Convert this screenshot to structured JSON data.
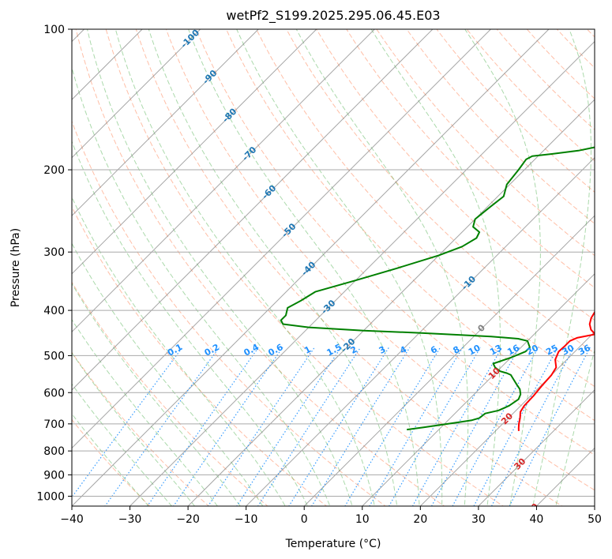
{
  "chart_data": {
    "type": "line",
    "title": "wetPf2_S199.2025.295.06.45.E03",
    "xlabel": "Temperature (°C)",
    "ylabel": "Pressure (hPa)",
    "xlim": [
      -40,
      50
    ],
    "ylim": [
      1050,
      100
    ],
    "x_ticks": [
      -40,
      -30,
      -20,
      -10,
      0,
      10,
      20,
      30,
      40,
      50
    ],
    "y_ticks": [
      100,
      200,
      300,
      400,
      500,
      600,
      700,
      800,
      900,
      1000
    ],
    "series": [
      {
        "name": "Temperature",
        "color": "#ff0000",
        "points": [
          [
            2.5,
            100
          ],
          [
            1.0,
            104
          ],
          [
            0.5,
            110
          ],
          [
            0.5,
            118
          ],
          [
            0.8,
            128
          ],
          [
            1.0,
            140
          ],
          [
            1.3,
            150
          ],
          [
            1.5,
            160
          ],
          [
            2.5,
            172
          ],
          [
            3.5,
            182
          ],
          [
            5.0,
            192
          ],
          [
            6.0,
            200
          ],
          [
            6.6,
            210
          ],
          [
            6.8,
            225
          ],
          [
            7.1,
            240
          ],
          [
            7.8,
            255
          ],
          [
            8.5,
            270
          ],
          [
            9.5,
            285
          ],
          [
            10.5,
            300
          ],
          [
            12.0,
            320
          ],
          [
            13.5,
            340
          ],
          [
            14.5,
            355
          ],
          [
            15.5,
            370
          ],
          [
            16.0,
            385
          ],
          [
            16.5,
            400
          ],
          [
            17.0,
            415
          ],
          [
            17.8,
            428
          ],
          [
            19.0,
            440
          ],
          [
            20.5,
            450
          ],
          [
            18.0,
            458
          ],
          [
            17.3,
            465
          ],
          [
            17.3,
            478
          ],
          [
            17.2,
            490
          ],
          [
            18.0,
            510
          ],
          [
            19.5,
            530
          ],
          [
            20.0,
            550
          ],
          [
            20.2,
            580
          ],
          [
            20.5,
            610
          ],
          [
            20.6,
            640
          ],
          [
            21.0,
            660
          ],
          [
            22.0,
            680
          ],
          [
            22.8,
            700
          ],
          [
            23.5,
            715
          ],
          [
            24.0,
            725
          ]
        ]
      },
      {
        "name": "Dewpoint",
        "color": "#008000",
        "points": [
          [
            0.5,
            100
          ],
          [
            0.5,
            104
          ],
          [
            0.3,
            108
          ],
          [
            -1.0,
            112
          ],
          [
            -2.0,
            118
          ],
          [
            -2.5,
            125
          ],
          [
            -3.0,
            135
          ],
          [
            -3.5,
            140
          ],
          [
            -4.0,
            145
          ],
          [
            -5.5,
            152
          ],
          [
            -6.5,
            158
          ],
          [
            -8.0,
            165
          ],
          [
            -9.0,
            172
          ],
          [
            -11.0,
            178
          ],
          [
            -14.0,
            182
          ],
          [
            -18.0,
            185
          ],
          [
            -21.0,
            187
          ],
          [
            -21.5,
            190
          ],
          [
            -21.0,
            200
          ],
          [
            -20.5,
            215
          ],
          [
            -19.0,
            228
          ],
          [
            -19.5,
            240
          ],
          [
            -20.0,
            255
          ],
          [
            -19.0,
            265
          ],
          [
            -17.0,
            272
          ],
          [
            -16.5,
            280
          ],
          [
            -17.5,
            292
          ],
          [
            -20.0,
            305
          ],
          [
            -25.0,
            325
          ],
          [
            -30.0,
            345
          ],
          [
            -35.0,
            365
          ],
          [
            -36.0,
            382
          ],
          [
            -37.0,
            395
          ],
          [
            -36.0,
            410
          ],
          [
            -36.0,
            420
          ],
          [
            -35.0,
            428
          ],
          [
            -30.0,
            435
          ],
          [
            -20.0,
            442
          ],
          [
            -10.0,
            447
          ],
          [
            -5.0,
            450
          ],
          [
            3.0,
            455
          ],
          [
            8.0,
            460
          ],
          [
            10.0,
            465
          ],
          [
            11.5,
            480
          ],
          [
            11.5,
            490
          ],
          [
            10.0,
            505
          ],
          [
            8.0,
            520
          ],
          [
            9.0,
            530
          ],
          [
            10.5,
            540
          ],
          [
            12.0,
            545
          ],
          [
            13.0,
            550
          ],
          [
            14.0,
            560
          ],
          [
            15.5,
            575
          ],
          [
            17.0,
            590
          ],
          [
            18.0,
            605
          ],
          [
            18.5,
            620
          ],
          [
            18.0,
            640
          ],
          [
            17.0,
            655
          ],
          [
            15.2,
            665
          ],
          [
            15.0,
            680
          ],
          [
            14.0,
            688
          ],
          [
            12.0,
            695
          ],
          [
            9.0,
            705
          ],
          [
            7.0,
            712
          ],
          [
            4.5,
            720
          ]
        ]
      }
    ],
    "isotherm_labels": {
      "items": [
        "-100",
        "-90",
        "-80",
        "-70",
        "-60",
        "-50",
        "-40",
        "-30",
        "-20",
        "-10",
        "0",
        "10",
        "20",
        "30",
        "40"
      ],
      "color": "#1f77b4",
      "warm_color": "#d62728",
      "zero_color": "#808080"
    },
    "mixing_ratio_labels": {
      "items": [
        "0.1",
        "0.2",
        "0.4",
        "0.6",
        "1",
        "1.5",
        "2",
        "3",
        "4",
        "6",
        "8",
        "10",
        "13",
        "16",
        "20",
        "25",
        "30",
        "36"
      ],
      "color": "#1e90ff"
    },
    "background_colors": {
      "isotherm": "#808080",
      "dry_adiabat": "#ff7f50",
      "moist_adiabat": "#2ca02c",
      "mixing_ratio": "#1e90ff",
      "grid": "#a9a9a9",
      "lcl_ref": "#d2b48c"
    }
  }
}
